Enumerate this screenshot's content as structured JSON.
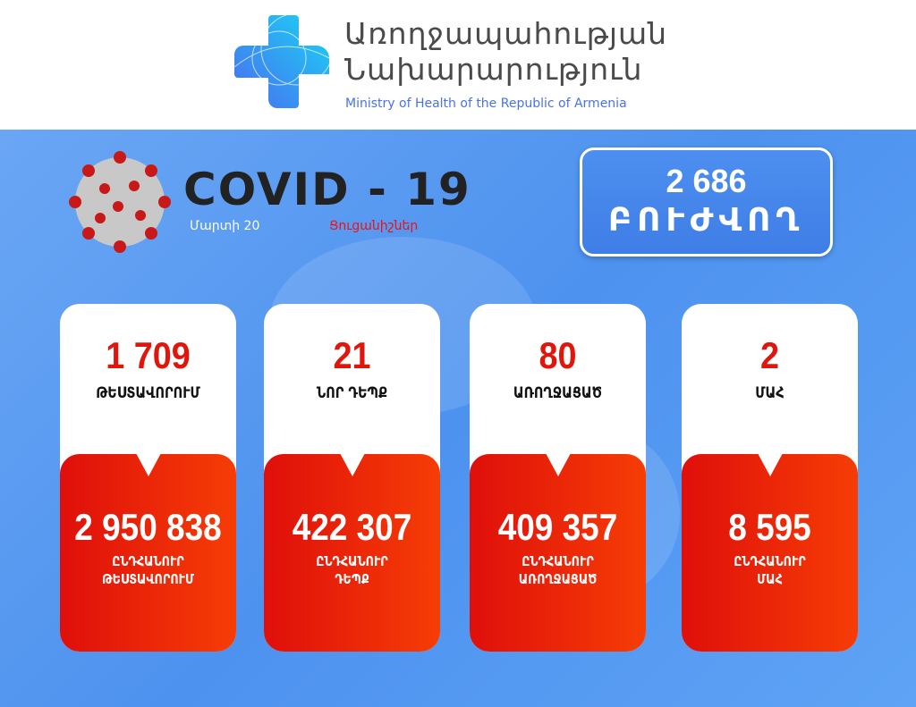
{
  "header": {
    "org_line1": "Առողջապահության",
    "org_line2": "Նախարարություն",
    "org_english": "Ministry of Health of the Republic of Armenia"
  },
  "banner": {
    "title": "COVID - 19",
    "date": "Մարտի 20",
    "indicators": "Ցուցանիշներ"
  },
  "recovering": {
    "value": "2 686",
    "label": "ԲՈՒԺՎՈՂ"
  },
  "cards": [
    {
      "value": "1 709",
      "label": "ԹԵՍՏԱՎՈՐՈՒՄ",
      "total": "2 950 838",
      "total_label1": "ԸՆԴՀԱՆՈՒՐ",
      "total_label2": "ԹԵՍՏԱՎՈՐՈՒՄ"
    },
    {
      "value": "21",
      "label": "ՆՈՐ ԴԵՊՔ",
      "total": "422 307",
      "total_label1": "ԸՆԴՀԱՆՈՒՐ",
      "total_label2": "ԴԵՊՔ"
    },
    {
      "value": "80",
      "label": "ԱՌՈՂՋԱՑԱԾ",
      "total": "409 357",
      "total_label1": "ԸՆԴՀԱՆՈՒՐ",
      "total_label2": "ԱՌՈՂՋԱՑԱԾ"
    },
    {
      "value": "2",
      "label": "ՄԱՀ",
      "total": "8 595",
      "total_label1": "ԸՆԴՀԱՆՈՒՐ",
      "total_label2": "ՄԱՀ"
    }
  ],
  "colors": {
    "accent_red": "#e0160c",
    "background_blue": "#5a9cf2",
    "badge_blue": "#4587ec",
    "logo_gradient": [
      "#1ad4f5",
      "#4a6cf0"
    ]
  }
}
